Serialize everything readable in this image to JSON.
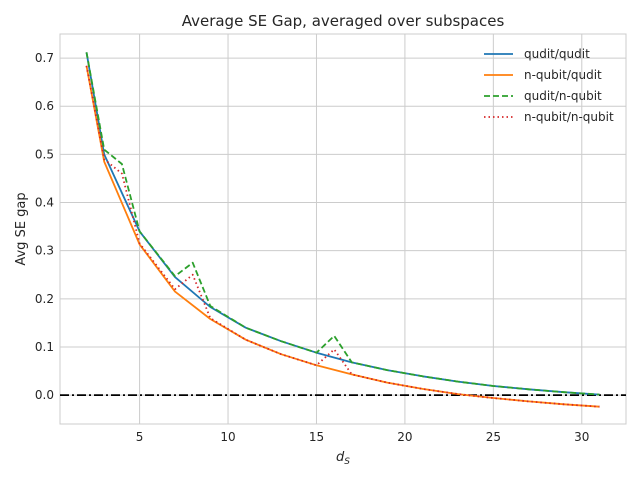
{
  "chart_data": {
    "type": "line",
    "title": "Average SE Gap, averaged over subspaces",
    "xlabel_base": "d",
    "xlabel_sub": "S",
    "ylabel": "Avg SE gap",
    "xlim": [
      0.5,
      32.5
    ],
    "ylim": [
      -0.06,
      0.75
    ],
    "xticks": [
      5,
      10,
      15,
      20,
      25,
      30
    ],
    "yticks": [
      0.0,
      0.1,
      0.2,
      0.3,
      0.4,
      0.5,
      0.6,
      0.7
    ],
    "ytick_labels": [
      "0.0",
      "0.1",
      "0.2",
      "0.3",
      "0.4",
      "0.5",
      "0.6",
      "0.7"
    ],
    "grid": true,
    "legend_position": "top-right",
    "reference_line": {
      "y": 0.0,
      "style": "dashdot",
      "color": "#000000"
    },
    "series": [
      {
        "name": "qudit/qudit",
        "color": "#1f77b4",
        "style": "solid",
        "x": [
          2,
          3,
          5,
          7,
          9,
          11,
          13,
          15,
          17,
          19,
          21,
          23,
          25,
          27,
          29,
          31
        ],
        "y": [
          0.712,
          0.5,
          0.34,
          0.245,
          0.183,
          0.14,
          0.112,
          0.088,
          0.068,
          0.052,
          0.039,
          0.028,
          0.019,
          0.012,
          0.006,
          0.001
        ]
      },
      {
        "name": "n-qubit/qudit",
        "color": "#ff7f0e",
        "style": "solid",
        "x": [
          2,
          3,
          5,
          7,
          9,
          11,
          13,
          15,
          17,
          19,
          21,
          23,
          25,
          27,
          29,
          31
        ],
        "y": [
          0.684,
          0.485,
          0.313,
          0.215,
          0.158,
          0.115,
          0.085,
          0.062,
          0.043,
          0.026,
          0.013,
          0.002,
          -0.006,
          -0.013,
          -0.019,
          -0.024
        ]
      },
      {
        "name": "qudit/n-qubit",
        "color": "#2ca02c",
        "style": "dashed",
        "x": [
          2,
          3,
          4,
          5,
          7,
          8,
          9,
          11,
          13,
          15,
          16,
          17,
          19,
          21,
          23,
          25,
          27,
          29,
          31
        ],
        "y": [
          0.712,
          0.51,
          0.48,
          0.34,
          0.247,
          0.275,
          0.185,
          0.14,
          0.112,
          0.088,
          0.123,
          0.068,
          0.052,
          0.039,
          0.028,
          0.019,
          0.012,
          0.006,
          0.001
        ]
      },
      {
        "name": "n-qubit/n-qubit",
        "color": "#d62728",
        "style": "dotted",
        "x": [
          2,
          3,
          4,
          5,
          7,
          8,
          9,
          11,
          13,
          15,
          16,
          17,
          19,
          21,
          23,
          25,
          27,
          29,
          31
        ],
        "y": [
          0.684,
          0.49,
          0.46,
          0.315,
          0.22,
          0.25,
          0.16,
          0.115,
          0.085,
          0.062,
          0.095,
          0.043,
          0.026,
          0.013,
          0.002,
          -0.006,
          -0.013,
          -0.019,
          -0.024
        ]
      }
    ]
  }
}
